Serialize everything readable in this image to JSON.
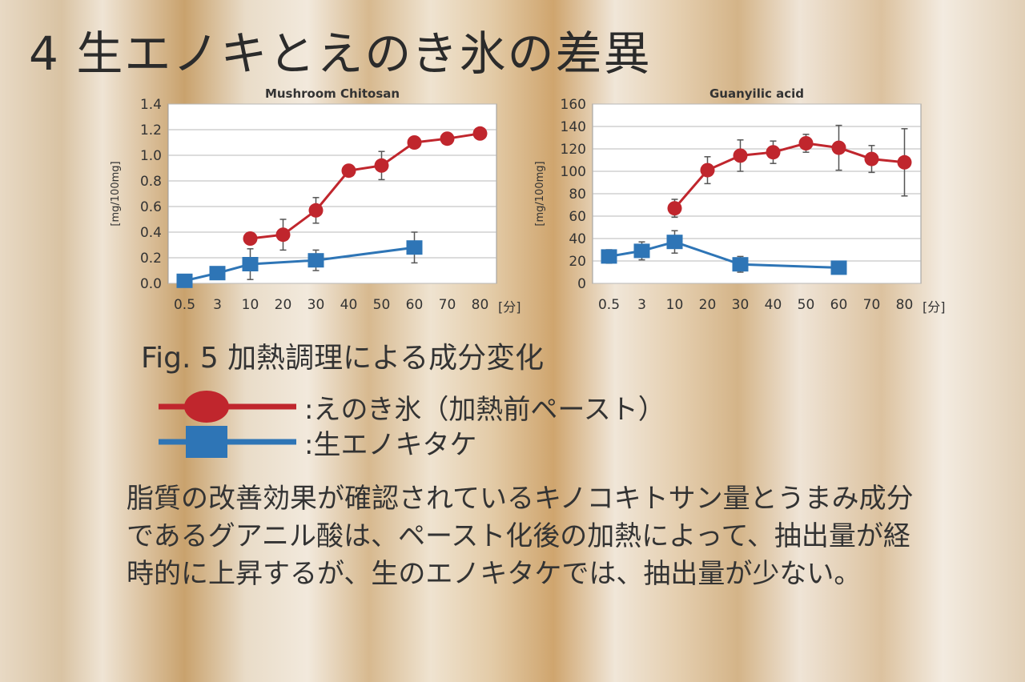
{
  "slide": {
    "title": "4  生エノキとえのき氷の差異",
    "figure_caption": "Fig. 5 加熱調理による成分変化",
    "body": "脂質の改善効果が確認されているキノコキトサン量とうまみ成分であるグアニル酸は、ペースト化後の加熱によって、抽出量が経時的に上昇するが、生のエノキタケでは、抽出量が少ない。"
  },
  "legend": [
    {
      "label": ":えのき氷（加熱前ペースト）",
      "color": "#c0262d",
      "marker": "circle"
    },
    {
      "label": ":生エノキタケ",
      "color": "#2e75b6",
      "marker": "square"
    }
  ],
  "colors": {
    "red_series": "#c0262d",
    "blue_series": "#2e75b6"
  },
  "chart_data": [
    {
      "type": "line",
      "title": "Mushroom Chitosan",
      "ylabel": "[mg/100mg]",
      "x_unit": "[分]",
      "x_tick_labels": [
        "0.5",
        "3",
        "10",
        "20",
        "30",
        "40",
        "50",
        "60",
        "70",
        "80"
      ],
      "y_tick_labels": [
        "0.0",
        "0.2",
        "0.4",
        "0.6",
        "0.8",
        "1.0",
        "1.2",
        "1.4"
      ],
      "ylim": [
        0,
        1.4
      ],
      "grid": true,
      "series": [
        {
          "marker": "circle",
          "color": "#c0262d",
          "x": [
            "10",
            "20",
            "30",
            "40",
            "50",
            "60",
            "70",
            "80"
          ],
          "y": [
            0.35,
            0.38,
            0.57,
            0.88,
            0.92,
            1.1,
            1.13,
            1.17
          ],
          "err": [
            0.03,
            0.12,
            0.1,
            0.03,
            0.11,
            0.03,
            0.03,
            0.03
          ]
        },
        {
          "marker": "square",
          "color": "#2e75b6",
          "x": [
            "0.5",
            "3",
            "10",
            "30",
            "60"
          ],
          "y": [
            0.02,
            0.08,
            0.15,
            0.18,
            0.28
          ],
          "err": [
            0.02,
            0.02,
            0.12,
            0.08,
            0.12
          ]
        }
      ]
    },
    {
      "type": "line",
      "title": "Guanyilic acid",
      "ylabel": "[mg/100mg]",
      "x_unit": "[分]",
      "x_tick_labels": [
        "0.5",
        "3",
        "10",
        "20",
        "30",
        "40",
        "50",
        "60",
        "70",
        "80"
      ],
      "y_tick_labels": [
        "0",
        "20",
        "40",
        "60",
        "80",
        "100",
        "120",
        "140",
        "160"
      ],
      "ylim": [
        0,
        160
      ],
      "grid": true,
      "series": [
        {
          "marker": "circle",
          "color": "#c0262d",
          "x": [
            "10",
            "20",
            "30",
            "40",
            "50",
            "60",
            "70",
            "80"
          ],
          "y": [
            67,
            101,
            114,
            117,
            125,
            121,
            111,
            108
          ],
          "err": [
            8,
            12,
            14,
            10,
            8,
            20,
            12,
            30
          ]
        },
        {
          "marker": "square",
          "color": "#2e75b6",
          "x": [
            "0.5",
            "3",
            "10",
            "30",
            "60"
          ],
          "y": [
            24,
            29,
            37,
            17,
            14
          ],
          "err": [
            6,
            8,
            10,
            7,
            4
          ]
        }
      ]
    }
  ]
}
